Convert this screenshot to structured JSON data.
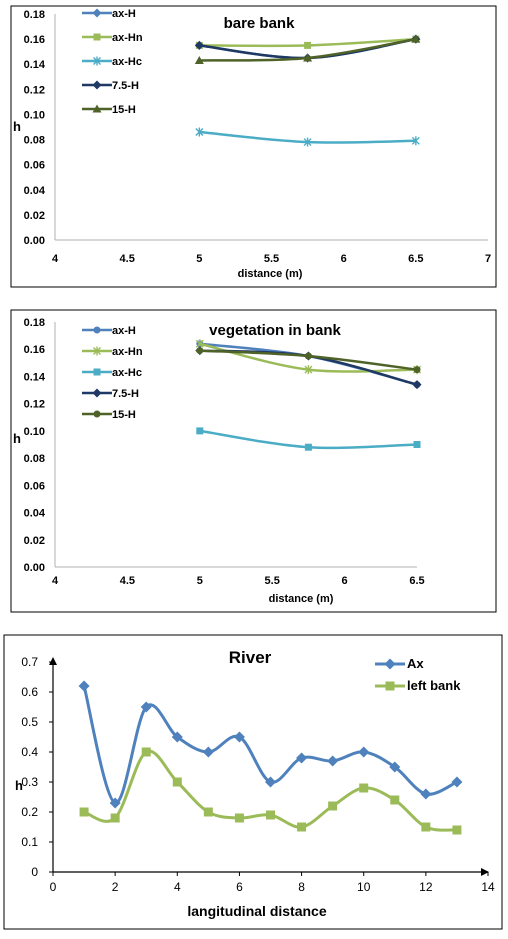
{
  "chart_data": [
    {
      "type": "line",
      "title": "bare bank",
      "xlabel": "distance (m)",
      "ylabel": "h",
      "xlim": [
        4,
        7
      ],
      "ylim": [
        0,
        0.18
      ],
      "x_ticks": [
        "4",
        "4.5",
        "5",
        "5.5",
        "6",
        "6.5",
        "7"
      ],
      "y_ticks": [
        "0.00",
        "0.02",
        "0.04",
        "0.06",
        "0.08",
        "0.10",
        "0.12",
        "0.14",
        "0.16",
        "0.18"
      ],
      "grid": false,
      "legend": "left",
      "series": [
        {
          "name": "ax-H",
          "color": "#4F81BD",
          "marker": "diamond",
          "x": [
            5,
            5.75,
            6.5
          ],
          "y": [
            0.155,
            0.145,
            0.16
          ]
        },
        {
          "name": "ax-Hn",
          "color": "#9BBB59",
          "marker": "square",
          "x": [
            5,
            5.75,
            6.5
          ],
          "y": [
            0.155,
            0.155,
            0.16
          ]
        },
        {
          "name": "ax-Hc",
          "color": "#4BACC6",
          "marker": "star",
          "x": [
            5,
            5.75,
            6.5
          ],
          "y": [
            0.086,
            0.078,
            0.079
          ]
        },
        {
          "name": "7.5-H",
          "color": "#1F3864",
          "marker": "diamond",
          "x": [
            5,
            5.75,
            6.5
          ],
          "y": [
            0.155,
            0.145,
            0.16
          ]
        },
        {
          "name": "15-H",
          "color": "#4F6228",
          "marker": "triangle",
          "x": [
            5,
            5.75,
            6.5
          ],
          "y": [
            0.143,
            0.145,
            0.16
          ]
        }
      ]
    },
    {
      "type": "line",
      "title": "vegetation in bank",
      "xlabel": "distance (m)",
      "ylabel": "h",
      "xlim": [
        4,
        6.5
      ],
      "ylim": [
        0,
        0.18
      ],
      "x_ticks": [
        "4",
        "4.5",
        "5",
        "5.5",
        "6",
        "6.5"
      ],
      "y_ticks": [
        "0.00",
        "0.02",
        "0.04",
        "0.06",
        "0.08",
        "0.10",
        "0.12",
        "0.14",
        "0.16",
        "0.18"
      ],
      "grid": false,
      "legend": "left",
      "series": [
        {
          "name": "ax-H",
          "color": "#4F81BD",
          "marker": "circle",
          "x": [
            5,
            5.75,
            6.5
          ],
          "y": [
            0.164,
            0.155,
            0.134
          ]
        },
        {
          "name": "ax-Hn",
          "color": "#9BBB59",
          "marker": "star",
          "x": [
            5,
            5.75,
            6.5
          ],
          "y": [
            0.164,
            0.145,
            0.145
          ]
        },
        {
          "name": "ax-Hc",
          "color": "#4BACC6",
          "marker": "square",
          "x": [
            5,
            5.75,
            6.5
          ],
          "y": [
            0.1,
            0.088,
            0.09
          ]
        },
        {
          "name": "7.5-H",
          "color": "#1F3864",
          "marker": "diamond",
          "x": [
            5,
            5.75,
            6.5
          ],
          "y": [
            0.159,
            0.155,
            0.134
          ]
        },
        {
          "name": "15-H",
          "color": "#4F6228",
          "marker": "circle",
          "x": [
            5,
            5.75,
            6.5
          ],
          "y": [
            0.159,
            0.155,
            0.145
          ]
        }
      ]
    },
    {
      "type": "line",
      "title": "River",
      "xlabel": "langitudinal distance",
      "ylabel": "h",
      "xlim": [
        0,
        14
      ],
      "ylim": [
        0,
        0.7
      ],
      "x_ticks": [
        "0",
        "2",
        "4",
        "6",
        "8",
        "10",
        "12",
        "14"
      ],
      "y_ticks": [
        "0",
        "0.1",
        "0.2",
        "0.3",
        "0.4",
        "0.5",
        "0.6",
        "0.7"
      ],
      "grid": false,
      "legend": "top-right",
      "series": [
        {
          "name": "Ax",
          "color": "#4F81BD",
          "marker": "diamond",
          "x": [
            1,
            2,
            3,
            4,
            5,
            6,
            7,
            8,
            9,
            10,
            11,
            12,
            13
          ],
          "y": [
            0.62,
            0.23,
            0.55,
            0.45,
            0.4,
            0.45,
            0.3,
            0.38,
            0.37,
            0.4,
            0.35,
            0.26,
            0.3
          ]
        },
        {
          "name": "left bank",
          "color": "#9BBB59",
          "marker": "square",
          "x": [
            1,
            2,
            3,
            4,
            5,
            6,
            7,
            8,
            9,
            10,
            11,
            12,
            13
          ],
          "y": [
            0.2,
            0.18,
            0.4,
            0.3,
            0.2,
            0.18,
            0.19,
            0.15,
            0.22,
            0.28,
            0.24,
            0.15,
            0.14
          ]
        }
      ]
    }
  ]
}
